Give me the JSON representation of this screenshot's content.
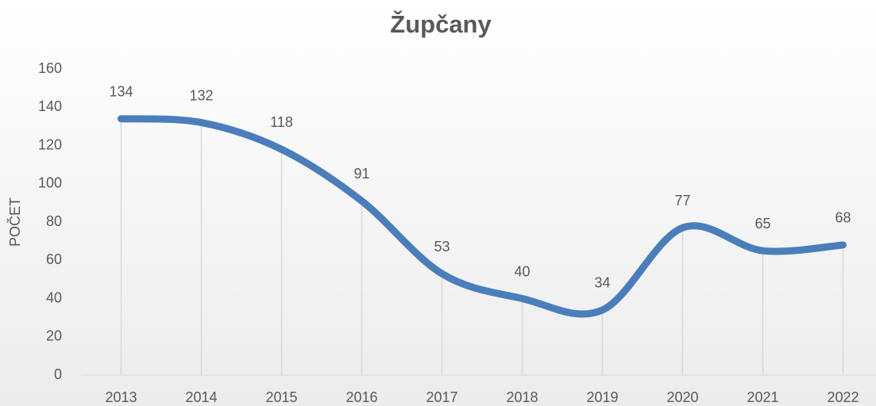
{
  "chart_data": {
    "type": "line",
    "title": "Župčany",
    "y_label": "POČET",
    "categories": [
      "2013",
      "2014",
      "2015",
      "2016",
      "2017",
      "2018",
      "2019",
      "2020",
      "2021",
      "2022"
    ],
    "series": [
      {
        "name": "Počet",
        "color": "#4a7ebb",
        "values": [
          134,
          132,
          118,
          91,
          53,
          40,
          34,
          77,
          65,
          68
        ]
      }
    ],
    "ylim": [
      0,
      160
    ],
    "yticks": [
      0,
      20,
      40,
      60,
      80,
      100,
      120,
      140,
      160
    ],
    "smooth": true,
    "drop_lines": true
  }
}
